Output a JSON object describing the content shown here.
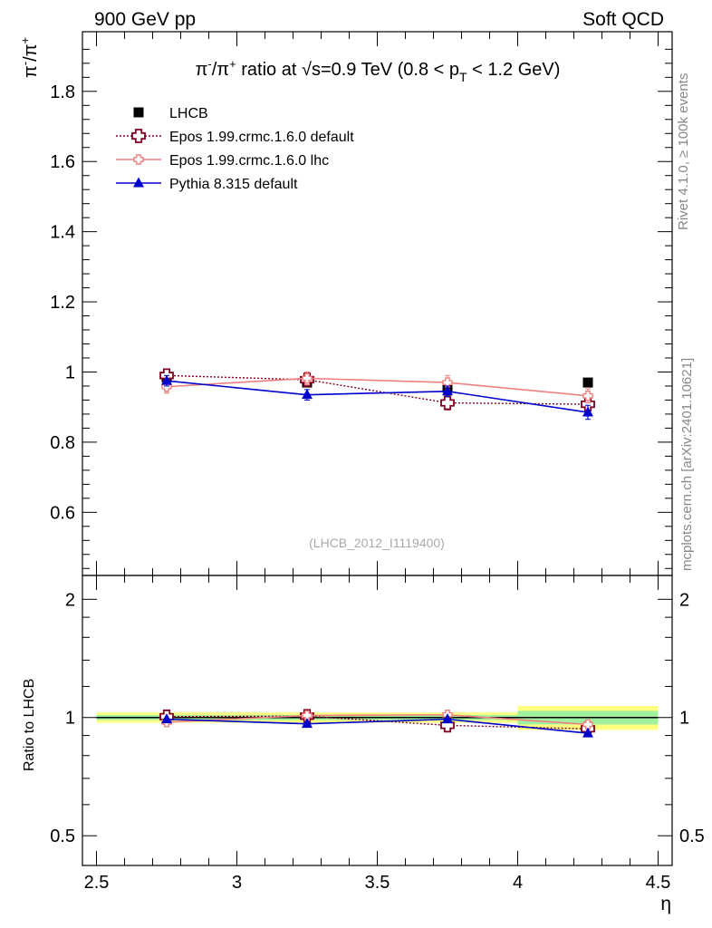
{
  "header": {
    "left_label": "900 GeV pp",
    "right_label": "Soft QCD"
  },
  "side_labels": {
    "rivet": "Rivet 4.1.0, ≥ 100k events",
    "mcplots": "mcplots.cern.ch [arXiv:2401.10621]"
  },
  "chart_data": [
    {
      "type": "line",
      "title": "π⁻/π⁺ ratio at √s=0.9 TeV (0.8 < pT < 1.2 GeV)",
      "title_parts": {
        "pre": "π",
        "sup1": "-",
        "mid": "/π",
        "sup2": "+",
        "post": " ratio at ",
        "sqrt": "√",
        "s_text": "s=0.9 TeV (0.8 < p",
        "sub": "T",
        "end": " < 1.2 GeV)"
      },
      "ylabel": {
        "base1": "π",
        "sup1": "-",
        "base2": "/π",
        "sup2": "+"
      },
      "xlabel": "",
      "xlim": [
        2.45,
        4.55
      ],
      "ylim": [
        0.42,
        1.97
      ],
      "yticks": [
        0.6,
        0.8,
        1.0,
        1.2,
        1.4,
        1.6,
        1.8
      ],
      "ytick_labels": [
        "0.6",
        "0.8",
        "1",
        "1.2",
        "1.4",
        "1.6",
        "1.8"
      ],
      "watermark": "(LHCB_2012_I1119400)",
      "x": [
        2.75,
        3.25,
        3.75,
        4.25
      ],
      "series": [
        {
          "name": "LHCB",
          "style": "data",
          "color": "#000000",
          "values": [
            0.985,
            0.97,
            0.955,
            0.97
          ],
          "errors": [
            0.01,
            0.01,
            0.012,
            0.012
          ]
        },
        {
          "name": "Epos 1.99.crmc.1.6.0 default",
          "style": "dotted-cross",
          "color": "#800020",
          "values": [
            0.99,
            0.978,
            0.912,
            0.908
          ],
          "errors": [
            0.015,
            0.015,
            0.02,
            0.02
          ]
        },
        {
          "name": "Epos 1.99.crmc.1.6.0 lhc",
          "style": "solid-smallcross",
          "color": "#f08080",
          "values": [
            0.958,
            0.982,
            0.97,
            0.932
          ],
          "errors": [
            0.018,
            0.018,
            0.02,
            0.02
          ]
        },
        {
          "name": "Pythia 8.315 default",
          "style": "solid-triangle",
          "color": "#0000cd",
          "values": [
            0.975,
            0.935,
            0.945,
            0.885
          ],
          "errors": [
            0.015,
            0.015,
            0.015,
            0.02
          ]
        }
      ]
    },
    {
      "type": "line",
      "title": "",
      "ylabel": "Ratio to LHCB",
      "xlabel": "η",
      "xlim": [
        2.45,
        4.55
      ],
      "ylim": [
        0.42,
        2.3
      ],
      "yscale": "log",
      "yticks": [
        0.5,
        1,
        2
      ],
      "ytick_labels": [
        "0.5",
        "1",
        "2"
      ],
      "xticks": [
        2.5,
        3,
        3.5,
        4,
        4.5
      ],
      "xtick_labels": [
        "2.5",
        "3",
        "3.5",
        "4",
        "4.5"
      ],
      "x": [
        2.75,
        3.25,
        3.75,
        4.25
      ],
      "band_outer": [
        0.03,
        0.03,
        0.03,
        0.07
      ],
      "band_inner": [
        0.015,
        0.015,
        0.015,
        0.04
      ],
      "band_outer_color": "#ffff80",
      "band_inner_color": "#a0f0a0",
      "series": [
        {
          "name": "Epos 1.99.crmc.1.6.0 default",
          "style": "dotted-cross",
          "color": "#800020",
          "values": [
            1.005,
            1.008,
            0.955,
            0.936
          ]
        },
        {
          "name": "Epos 1.99.crmc.1.6.0 lhc",
          "style": "solid-smallcross",
          "color": "#f08080",
          "values": [
            0.973,
            1.012,
            1.016,
            0.96
          ]
        },
        {
          "name": "Pythia 8.315 default",
          "style": "solid-triangle",
          "color": "#0000cd",
          "values": [
            0.99,
            0.964,
            0.99,
            0.912
          ]
        }
      ]
    }
  ]
}
